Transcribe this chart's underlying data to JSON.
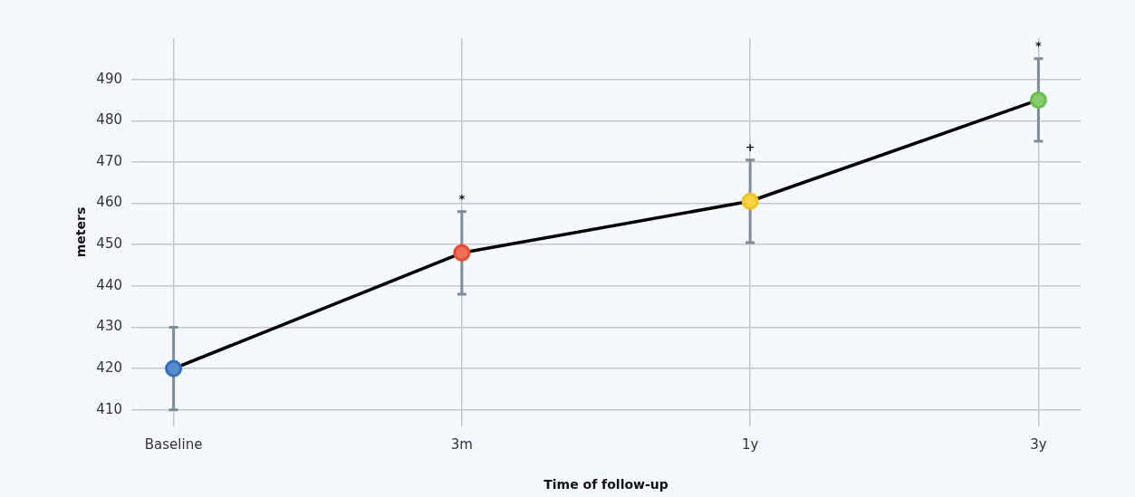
{
  "chart_data": {
    "type": "line",
    "xlabel": "Time of follow-up",
    "ylabel": "meters",
    "categories": [
      "Baseline",
      "3m",
      "1y",
      "3y"
    ],
    "series": [
      {
        "color": "#000000",
        "colors": [
          "#2f6fc0",
          "#e84a2f",
          "#f5c518",
          "#6abf4b"
        ],
        "values": [
          420,
          448,
          460.5,
          485
        ],
        "errors": [
          10,
          10,
          10,
          10
        ]
      }
    ],
    "ylim": [
      406,
      500
    ],
    "yticks": [
      410,
      420,
      430,
      440,
      450,
      460,
      470,
      480,
      490
    ],
    "grid": true,
    "legend": false,
    "marker": "circle",
    "line_style": "solid",
    "annotations": [
      {
        "text": "*",
        "x": "3m",
        "y": 458
      },
      {
        "text": "+",
        "x": "1y",
        "y": 470.5
      },
      {
        "text": "*",
        "x": "3y",
        "y": 495
      }
    ]
  }
}
